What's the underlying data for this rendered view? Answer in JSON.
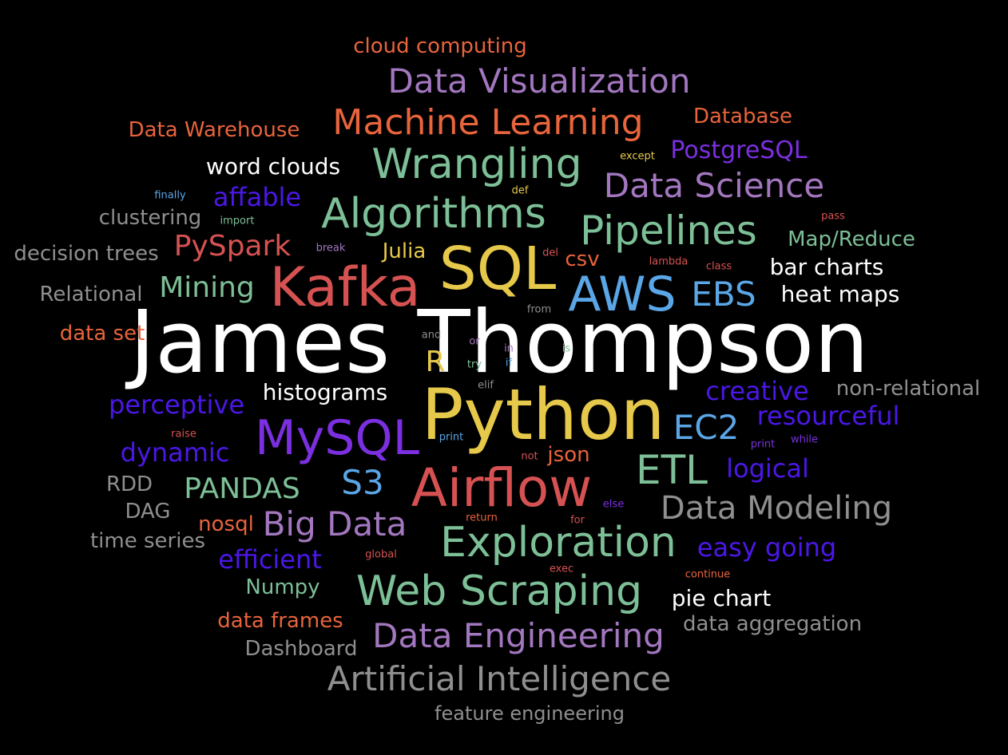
{
  "palette": {
    "white": "#ffffff",
    "orange": "#e8643c",
    "purple": "#a377bf",
    "violet": "#7b2fe0",
    "indigo": "#4b17e6",
    "green": "#7dbf97",
    "yellow": "#e6c84a",
    "red": "#d65252",
    "blue": "#5aa6e6",
    "gray": "#8f8f8f"
  },
  "words": [
    {
      "text": "James Thompson",
      "color": "white"
    },
    {
      "text": "Python",
      "color": "yellow"
    },
    {
      "text": "SQL",
      "color": "yellow"
    },
    {
      "text": "Kafka",
      "color": "red"
    },
    {
      "text": "Airflow",
      "color": "red"
    },
    {
      "text": "MySQL",
      "color": "violet"
    },
    {
      "text": "AWS",
      "color": "blue"
    },
    {
      "text": "Exploration",
      "color": "green"
    },
    {
      "text": "Web Scraping",
      "color": "green"
    },
    {
      "text": "Algorithms",
      "color": "green"
    },
    {
      "text": "Wrangling",
      "color": "green"
    },
    {
      "text": "Pipelines",
      "color": "green"
    },
    {
      "text": "ETL",
      "color": "green"
    },
    {
      "text": "Machine Learning",
      "color": "orange"
    },
    {
      "text": "Data Visualization",
      "color": "purple"
    },
    {
      "text": "Data Science",
      "color": "purple"
    },
    {
      "text": "Data Engineering",
      "color": "purple"
    },
    {
      "text": "Big Data",
      "color": "purple"
    },
    {
      "text": "Artificial Intelligence",
      "color": "gray"
    },
    {
      "text": "Data Modeling",
      "color": "gray"
    },
    {
      "text": "EBS",
      "color": "blue"
    },
    {
      "text": "EC2",
      "color": "blue"
    },
    {
      "text": "S3",
      "color": "blue"
    },
    {
      "text": "PySpark",
      "color": "red"
    },
    {
      "text": "Mining",
      "color": "green"
    },
    {
      "text": "PANDAS",
      "color": "green"
    },
    {
      "text": "Database",
      "color": "orange"
    },
    {
      "text": "Data Warehouse",
      "color": "orange"
    },
    {
      "text": "cloud computing",
      "color": "orange"
    },
    {
      "text": "PostgreSQL",
      "color": "violet"
    },
    {
      "text": "affable",
      "color": "indigo"
    },
    {
      "text": "word clouds",
      "color": "white"
    },
    {
      "text": "Map/Reduce",
      "color": "green"
    },
    {
      "text": "bar charts",
      "color": "white"
    },
    {
      "text": "heat maps",
      "color": "white"
    },
    {
      "text": "histograms",
      "color": "white"
    },
    {
      "text": "pie chart",
      "color": "white"
    },
    {
      "text": "creative",
      "color": "indigo"
    },
    {
      "text": "resourceful",
      "color": "indigo"
    },
    {
      "text": "perceptive",
      "color": "indigo"
    },
    {
      "text": "dynamic",
      "color": "indigo"
    },
    {
      "text": "logical",
      "color": "indigo"
    },
    {
      "text": "easy going",
      "color": "indigo"
    },
    {
      "text": "efficient",
      "color": "indigo"
    },
    {
      "text": "non-relational",
      "color": "gray"
    },
    {
      "text": "clustering",
      "color": "gray"
    },
    {
      "text": "decision trees",
      "color": "gray"
    },
    {
      "text": "Relational",
      "color": "gray"
    },
    {
      "text": "RDD",
      "color": "gray"
    },
    {
      "text": "DAG",
      "color": "gray"
    },
    {
      "text": "time series",
      "color": "gray"
    },
    {
      "text": "Dashboard",
      "color": "gray"
    },
    {
      "text": "data aggregation",
      "color": "gray"
    },
    {
      "text": "feature engineering",
      "color": "gray"
    },
    {
      "text": "data set",
      "color": "orange"
    },
    {
      "text": "nosql",
      "color": "orange"
    },
    {
      "text": "data frames",
      "color": "orange"
    },
    {
      "text": "json",
      "color": "orange"
    },
    {
      "text": "csv",
      "color": "orange"
    },
    {
      "text": "Julia",
      "color": "yellow"
    },
    {
      "text": "R",
      "color": "yellow"
    },
    {
      "text": "Numpy",
      "color": "green"
    },
    {
      "text": "except",
      "color": "yellow"
    },
    {
      "text": "def",
      "color": "yellow"
    },
    {
      "text": "finally",
      "color": "blue"
    },
    {
      "text": "import",
      "color": "green"
    },
    {
      "text": "break",
      "color": "purple"
    },
    {
      "text": "del",
      "color": "red"
    },
    {
      "text": "lambda",
      "color": "red"
    },
    {
      "text": "class",
      "color": "red"
    },
    {
      "text": "pass",
      "color": "red"
    },
    {
      "text": "from",
      "color": "gray"
    },
    {
      "text": "and",
      "color": "gray"
    },
    {
      "text": "or",
      "color": "purple"
    },
    {
      "text": "in",
      "color": "purple"
    },
    {
      "text": "is",
      "color": "green"
    },
    {
      "text": "try",
      "color": "green"
    },
    {
      "text": "if",
      "color": "blue"
    },
    {
      "text": "elif",
      "color": "gray"
    },
    {
      "text": "raise",
      "color": "red"
    },
    {
      "text": "print",
      "color": "blue"
    },
    {
      "text": "print",
      "color": "violet"
    },
    {
      "text": "while",
      "color": "violet"
    },
    {
      "text": "not",
      "color": "red"
    },
    {
      "text": "else",
      "color": "violet"
    },
    {
      "text": "return",
      "color": "orange"
    },
    {
      "text": "for",
      "color": "red"
    },
    {
      "text": "global",
      "color": "red"
    },
    {
      "text": "exec",
      "color": "red"
    },
    {
      "text": "continue",
      "color": "orange"
    }
  ]
}
